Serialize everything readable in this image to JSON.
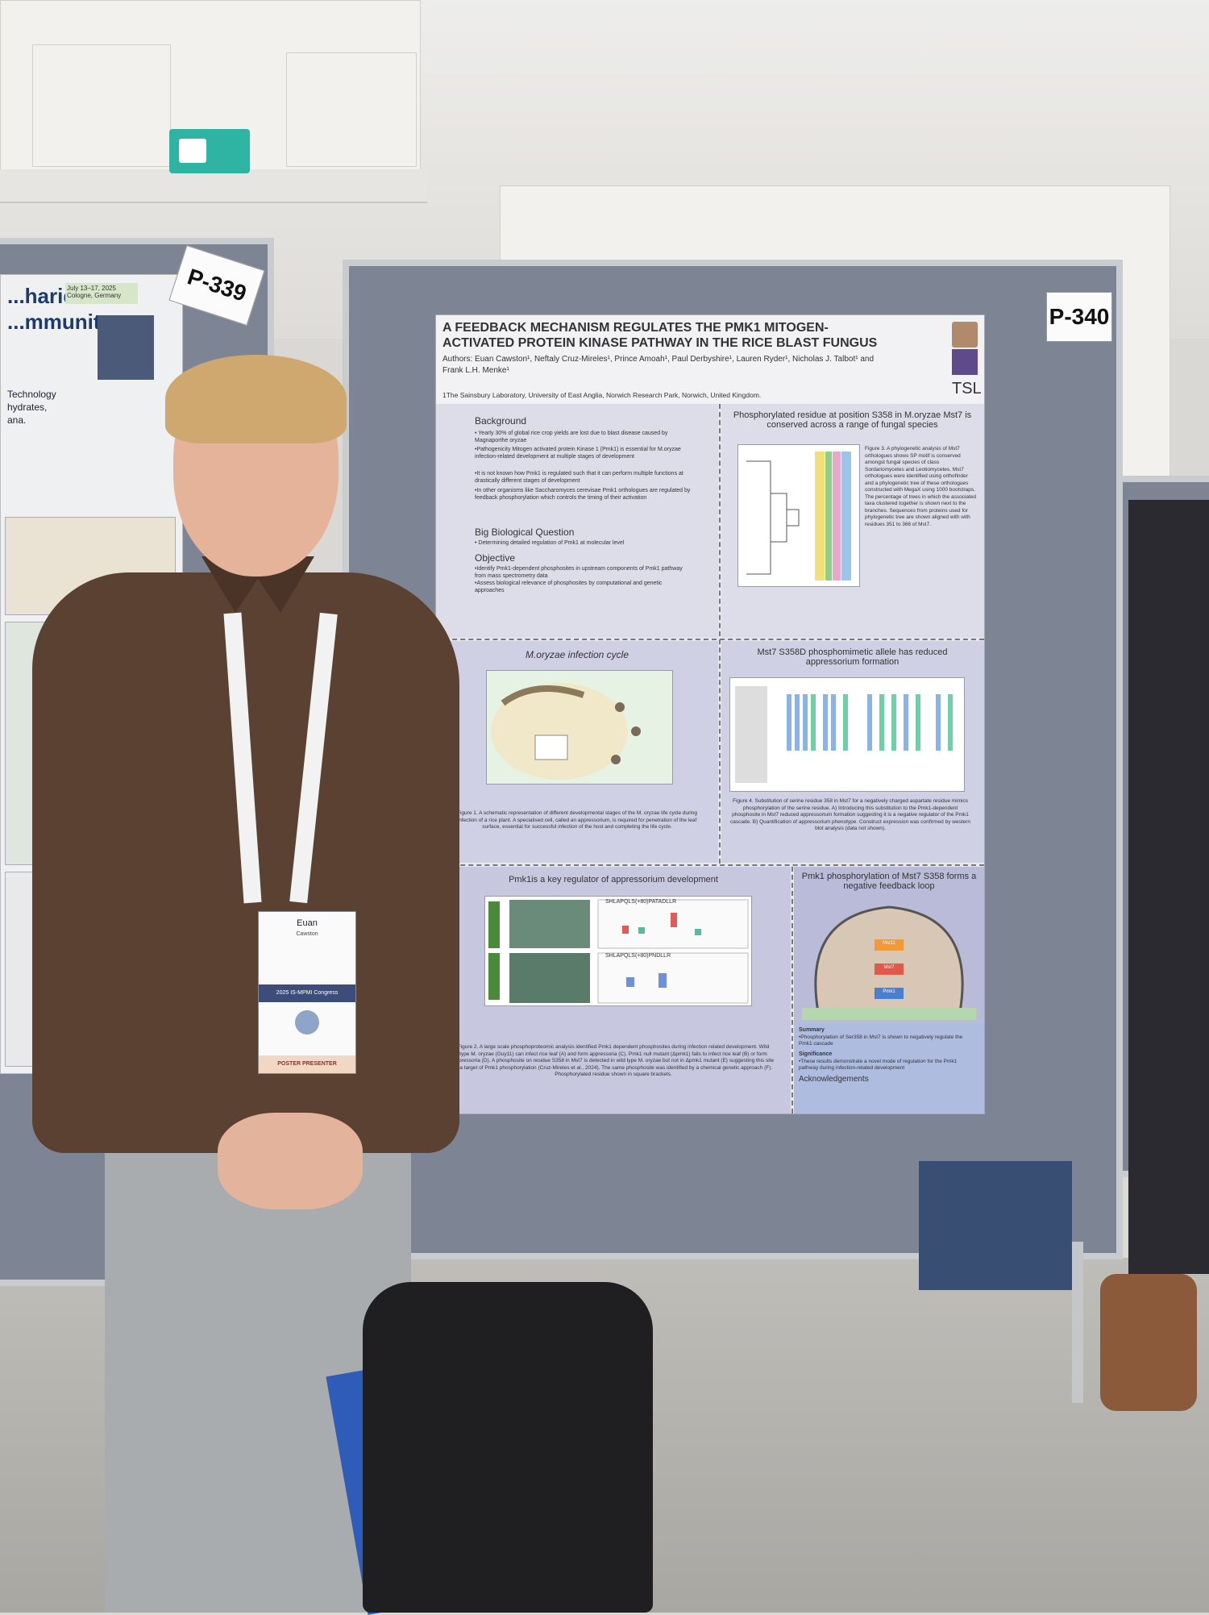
{
  "boards": {
    "main_tag": "P-340",
    "left_tag": "P-339"
  },
  "left_poster": {
    "title": "...harides\n...mmunity",
    "date_box": "July 13–17, 2025 Cologne, Germany",
    "side_text": "Technology\nhydrates,\nana."
  },
  "poster": {
    "title": "A FEEDBACK MECHANISM REGULATES THE PMK1 MITOGEN-ACTIVATED PROTEIN KINASE PATHWAY IN THE RICE BLAST FUNGUS",
    "authors": "Authors: Euan Cawston¹, Neftaly Cruz-Mireles¹, Prince Amoah¹, Paul Derbyshire¹, Lauren Ryder¹, Nicholas J. Talbot¹ and Frank L.H. Menke¹",
    "affiliation": "1The Sainsbury Laboratory, University of East Anglia, Norwich Research Park, Norwich, United Kingdom.",
    "logo": "TSL",
    "background": {
      "heading": "Background",
      "bullets": [
        "• Yearly 30% of global rice crop yields are lost due to blast disease caused by Magnaporthe oryzae",
        "•Pathogenicity Mitogen activated protein Kinase 1 (Pmk1) is essential for M.oryzae infection-related development at multiple stages of development",
        "•It is not known how Pmk1 is regulated such that it can perform multiple functions at drastically different stages of development",
        "•In other organisms like Saccharomyces cerevisae Pmk1 orthologues are regulated by feedback phosphorylation which controls the timing of their activation"
      ]
    },
    "big_question": {
      "heading": "Big Biological Question",
      "text": "• Determining detailed regulation of Pmk1 at molecular level"
    },
    "objective": {
      "heading": "Objective",
      "text": "•Identify Pmk1-dependent phosphosites in upstream components of Pmk1 pathway from mass spectrometry data\n•Assess biological relevance of phosphosites by computational and genetic approaches"
    },
    "phylo": {
      "heading": "Phosphorylated residue at position S358 in M.oryzae Mst7  is conserved across a range of fungal species",
      "caption": "Figure 3. A phylogenetic analysis of Mst7 orthologues shows SP motif is conserved amongst fungal species of class Sordariomycetes and Leotiomycetes. Mst7 orthologues were identified using orthofinder and a phylogenetic tree of these orthologues constructed with MegaX using 1000 bootstraps. The percentage of trees in which the associated taxa clustered together is shown next to the branches. Sequences from proteins used for phylogenetic tree are shown aligned with with residues 351 to 366 of Mst7."
    },
    "infection": {
      "heading": "M.oryzae infection cycle",
      "caption": "Figure 1. A schematic representation of different developmental stages of the M. oryzae life cycle during infection of a rice plant. A specialised cell, called an appressorium, is required for penetration of the leaf surface, essential for successful infection of the host and completing the life cycle."
    },
    "mst7": {
      "heading": "Mst7 S358D phosphomimetic allele has reduced appressorium formation",
      "caption": "Figure 4. Substitution of serine residue 358 in Mst7 for a negatively charged aspartate residue mimics phosphorylation of the serine residue. A) Introducing this substitution to the Pmk1-dependent phosphosite in Mst7 reduced appressorium formation suggesting it is a negative regulator of the Pmk1 cascade. B) Quantification of appressorium phenotype. Construct expression was confirmed by western blot analysis (data not shown)."
    },
    "pmk1_regulator": {
      "heading": "Pmk1is a key regulator of appressorium development",
      "seq_top": "SHLAPQLS(+80)PATADLLR",
      "seq_bottom": "SHLAPQLS(+80)PNDLLR",
      "caption": "Figure 2. A large scale phosphoproteomic analysis identified Pmk1 dependent phosphosites during infection related development. Wild type M. oryzae (Guy11) can infect rice leaf (A) and form appressoria (C). Pmk1 null mutant (Δpmk1) fails to infect rice leaf (B) or form appressoria (D). A phosphosite on residue S358 in Mst7 is detected in wild type M. oryzae but not in Δpmk1 mutant (E) suggesting this site is a target of Pmk1 phosphorylation (Cruz-Mireles et al., 2024). The same phosphosite was identified by a chemical genetic approach (F). Phosphorylated residue shown in square brackets."
    },
    "feedback": {
      "heading": "Pmk1 phosphorylation of Mst7 S358 forms a negative feedback loop",
      "node1": "Mst11",
      "node2": "Mst7",
      "node3": "Pmk1",
      "summary_heading": "Summary",
      "summary": "•Phosphorylation of Ser358 in Mst7 is shown to negatively regulate the Pmk1 cascade",
      "significance_heading": "Significance",
      "significance": "•These results demonstrate a novel mode of regulation for the Pmk1 pathway during infection-related development",
      "ack": "Acknowledgements"
    }
  },
  "badge": {
    "name": "Euan",
    "surname": "Cawston",
    "event": "2025 IS-MPMI Congress",
    "footer": "POSTER PRESENTER"
  },
  "colors": {
    "board": "#7d8594",
    "poster_bg": "#e7e8ee",
    "shirt": "#5a4132"
  }
}
